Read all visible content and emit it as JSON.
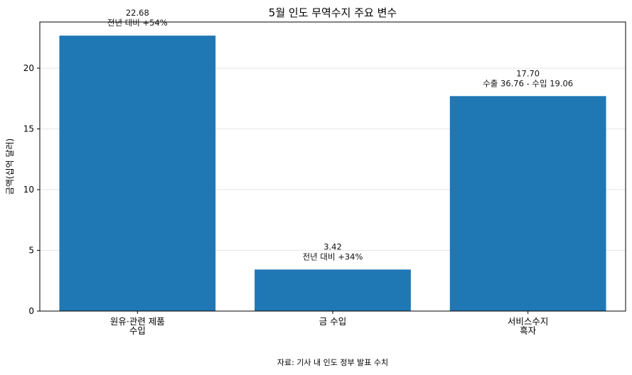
{
  "chart_data": {
    "type": "bar",
    "title": "5월 인도 무역수지 주요 변수",
    "ylabel": "금액(십억 달러)",
    "xlabel": "",
    "ylim": [
      0,
      23.8
    ],
    "yticks": [
      0,
      5,
      10,
      15,
      20
    ],
    "grid": "y",
    "bar_color": "#1f77b4",
    "categories": [
      [
        "원유·관련 제품",
        "수입"
      ],
      [
        "금 수입"
      ],
      [
        "서비스수지",
        "흑자"
      ]
    ],
    "values": [
      22.68,
      3.42,
      17.7
    ],
    "value_labels": [
      "22.68",
      "3.42",
      "17.70"
    ],
    "annotations": [
      "전년 대비 +54%",
      "전년 대비 +34%",
      "수출 36.76 - 수입 19.06"
    ],
    "source_note": "자료: 기사 내 인도 정부 발표 수치"
  }
}
